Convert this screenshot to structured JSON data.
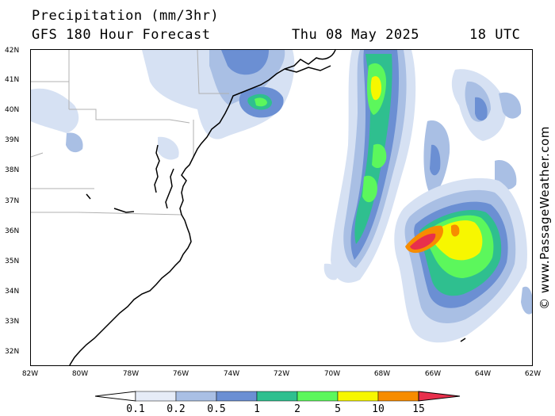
{
  "header": {
    "title": "Precipitation (mm/3hr)",
    "subtitle": "GFS 180 Hour Forecast",
    "date": "Thu 08 May 2025",
    "time": "18 UTC"
  },
  "copyright": "© www.PassageWeather.com",
  "axes": {
    "lat_labels": [
      "42N",
      "41N",
      "40N",
      "39N",
      "38N",
      "37N",
      "36N",
      "35N",
      "34N",
      "33N",
      "32N"
    ],
    "lon_labels": [
      "82W",
      "80W",
      "78W",
      "76W",
      "74W",
      "72W",
      "70W",
      "68W",
      "66W",
      "64W",
      "62W"
    ]
  },
  "legend": {
    "ticks": [
      "0.1",
      "0.2",
      "0.5",
      "1",
      "2",
      "5",
      "10",
      "15"
    ],
    "colors": [
      "#ffffff",
      "#e6ecf7",
      "#a9bfe4",
      "#6b8fd3",
      "#2fbf8f",
      "#5cf75c",
      "#f7f700",
      "#f78c00",
      "#e8304c"
    ]
  },
  "colors": {
    "light": "#d6e1f3",
    "lightblue": "#a9bfe4",
    "blue": "#6b8fd3",
    "teal": "#2fbf8f",
    "green": "#5cf75c",
    "yellow": "#f7f700",
    "orange": "#f78c00",
    "red": "#e8304c"
  }
}
